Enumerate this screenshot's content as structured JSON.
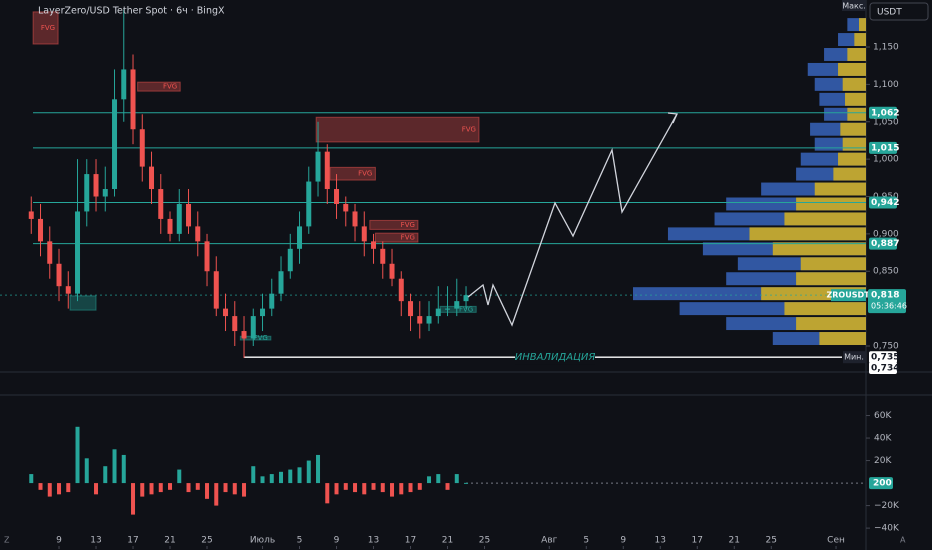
{
  "chart_data": {
    "type": "candlestick",
    "title": "LayerZero/USD Tether Spot · 6ч · BingX",
    "currency": "USDT",
    "symbol": "ZROUSDT",
    "timer": "05:36:46",
    "max_label": "Макс.",
    "min_label": "Мин.",
    "x": [
      6,
      7,
      8,
      9,
      10,
      11,
      12,
      13,
      14,
      15,
      16,
      17,
      18,
      19,
      20,
      21,
      22,
      23,
      24,
      25,
      26,
      27,
      28,
      29,
      30,
      31,
      32,
      33,
      34,
      35,
      36,
      37,
      38,
      39,
      40,
      41,
      42,
      43,
      44,
      45,
      46,
      47,
      48,
      49,
      50,
      51,
      52,
      53
    ],
    "open": [
      0.93,
      0.92,
      0.89,
      0.86,
      0.83,
      0.82,
      0.93,
      0.98,
      0.95,
      0.96,
      1.08,
      1.12,
      1.04,
      0.99,
      0.96,
      0.92,
      0.9,
      0.94,
      0.91,
      0.89,
      0.85,
      0.8,
      0.79,
      0.77,
      0.76,
      0.79,
      0.8,
      0.82,
      0.85,
      0.88,
      0.91,
      0.97,
      1.01,
      0.96,
      0.94,
      0.93,
      0.91,
      0.89,
      0.88,
      0.86,
      0.84,
      0.81,
      0.79,
      0.78,
      0.79,
      0.8,
      0.8,
      0.81
    ],
    "high": [
      0.95,
      0.94,
      0.91,
      0.88,
      0.85,
      1.0,
      1.0,
      1.0,
      0.99,
      1.12,
      1.2,
      1.14,
      1.06,
      1.01,
      0.98,
      0.93,
      0.96,
      0.96,
      0.93,
      0.9,
      0.87,
      0.82,
      0.81,
      0.79,
      0.8,
      0.82,
      0.84,
      0.87,
      0.9,
      0.93,
      0.99,
      1.05,
      1.02,
      0.98,
      0.95,
      0.94,
      0.93,
      0.9,
      0.89,
      0.88,
      0.85,
      0.82,
      0.81,
      0.81,
      0.83,
      0.83,
      0.84,
      0.83
    ],
    "low": [
      0.9,
      0.87,
      0.84,
      0.81,
      0.8,
      0.81,
      0.91,
      0.93,
      0.93,
      0.95,
      1.05,
      1.02,
      0.97,
      0.94,
      0.9,
      0.89,
      0.89,
      0.9,
      0.87,
      0.83,
      0.79,
      0.77,
      0.75,
      0.734,
      0.75,
      0.77,
      0.79,
      0.81,
      0.84,
      0.86,
      0.9,
      0.95,
      0.94,
      0.92,
      0.91,
      0.89,
      0.87,
      0.86,
      0.84,
      0.83,
      0.79,
      0.77,
      0.76,
      0.77,
      0.78,
      0.79,
      0.79,
      0.8
    ],
    "close": [
      0.92,
      0.89,
      0.86,
      0.83,
      0.82,
      0.93,
      0.98,
      0.95,
      0.96,
      1.08,
      1.12,
      1.04,
      0.99,
      0.96,
      0.92,
      0.9,
      0.94,
      0.91,
      0.89,
      0.85,
      0.8,
      0.79,
      0.77,
      0.76,
      0.79,
      0.8,
      0.82,
      0.85,
      0.88,
      0.91,
      0.97,
      1.01,
      0.96,
      0.94,
      0.93,
      0.91,
      0.89,
      0.88,
      0.86,
      0.84,
      0.81,
      0.79,
      0.78,
      0.79,
      0.8,
      0.8,
      0.81,
      0.818
    ],
    "volume": [
      8000,
      -6000,
      -12000,
      -10000,
      -8000,
      50000,
      22000,
      -10000,
      15000,
      30000,
      25000,
      -28000,
      -12000,
      -10000,
      -8000,
      -6000,
      12000,
      -8000,
      -6000,
      -14000,
      -20000,
      -8000,
      -10000,
      -12000,
      15000,
      6000,
      8000,
      10000,
      12000,
      14000,
      20000,
      25000,
      -18000,
      -10000,
      -6000,
      -8000,
      -10000,
      -6000,
      -8000,
      -12000,
      -10000,
      -8000,
      -6000,
      6000,
      8000,
      -6000,
      8000,
      200
    ],
    "up_color": "#26a69a",
    "down_color": "#ef5350",
    "xlim": [
      2.62,
      96.24
    ],
    "xticks": [
      {
        "value": 9,
        "label": "9"
      },
      {
        "value": 13,
        "label": "13"
      },
      {
        "value": 17,
        "label": "17"
      },
      {
        "value": 21,
        "label": "21"
      },
      {
        "value": 25,
        "label": "25"
      },
      {
        "value": 31,
        "label": "Июль"
      },
      {
        "value": 35,
        "label": "5"
      },
      {
        "value": 39,
        "label": "9"
      },
      {
        "value": 43,
        "label": "13"
      },
      {
        "value": 47,
        "label": "17"
      },
      {
        "value": 51,
        "label": "21"
      },
      {
        "value": 55,
        "label": "25"
      },
      {
        "value": 62,
        "label": "Авг"
      },
      {
        "value": 66,
        "label": "5"
      },
      {
        "value": 70,
        "label": "9"
      },
      {
        "value": 74,
        "label": "13"
      },
      {
        "value": 78,
        "label": "17"
      },
      {
        "value": 82,
        "label": "21"
      },
      {
        "value": 86,
        "label": "25"
      },
      {
        "value": 93,
        "label": "Сен"
      }
    ],
    "ylim": [
      0.7152,
      1.2129
    ],
    "yticks": [
      {
        "value": 0.75,
        "label": "0,750"
      },
      {
        "value": 0.85,
        "label": "0,850"
      },
      {
        "value": 0.9,
        "label": "0,900"
      },
      {
        "value": 0.95,
        "label": "0,950"
      },
      {
        "value": 1.0,
        "label": "1,000"
      },
      {
        "value": 1.05,
        "label": "1,050"
      },
      {
        "value": 1.1,
        "label": "1,100"
      },
      {
        "value": 1.15,
        "label": "1,150"
      }
    ],
    "vlim": [
      -55000,
      73800
    ],
    "vticks": [
      {
        "value": 60000,
        "label": "60K"
      },
      {
        "value": 40000,
        "label": "40K"
      },
      {
        "value": 20000,
        "label": "20K"
      },
      {
        "value": -20000,
        "label": "−20K"
      },
      {
        "value": -40000,
        "label": "−40K"
      }
    ],
    "levels": [
      {
        "value": 1.062,
        "label": "1,062"
      },
      {
        "value": 1.015,
        "label": "1,015"
      },
      {
        "value": 0.942,
        "label": "0,942"
      },
      {
        "value": 0.887,
        "label": "0,887"
      }
    ],
    "level_color": "#26a69a",
    "invalidation": {
      "value": 0.735,
      "label": "0,735",
      "text": "ИНВАЛИДАЦИЯ"
    },
    "last_price": {
      "value": 0.818,
      "label": "0,818"
    },
    "min_price": {
      "value": 0.734,
      "label": "0,734"
    },
    "fvg_zones": [
      {
        "start": 6.2,
        "end": 8.9,
        "top": 1.197,
        "bottom": 1.154,
        "color": "#ef5350",
        "label": "FVG"
      },
      {
        "start": 17.5,
        "end": 22.1,
        "top": 1.103,
        "bottom": 1.091,
        "color": "#ef5350",
        "label": "FVG"
      },
      {
        "start": 36.8,
        "end": 54.4,
        "top": 1.056,
        "bottom": 1.023,
        "color": "#ef5350",
        "label": "FVG"
      },
      {
        "start": 38.3,
        "end": 43.2,
        "top": 0.989,
        "bottom": 0.972,
        "color": "#ef5350",
        "label": "FVG"
      },
      {
        "start": 42.6,
        "end": 47.8,
        "top": 0.918,
        "bottom": 0.906,
        "color": "#ef5350",
        "label": "FVG"
      },
      {
        "start": 43.2,
        "end": 47.8,
        "top": 0.901,
        "bottom": 0.889,
        "color": "#ef5350",
        "label": "FVG"
      },
      {
        "start": 10.2,
        "end": 13.0,
        "top": 0.817,
        "bottom": 0.798,
        "color": "#26a69a"
      },
      {
        "start": 28.6,
        "end": 31.9,
        "top": 0.763,
        "bottom": 0.758,
        "color": "#26a69a",
        "label": "FVG"
      },
      {
        "start": 50.2,
        "end": 54.1,
        "top": 0.803,
        "bottom": 0.795,
        "color": "#26a69a",
        "label": "FVG"
      }
    ],
    "volume_profile": {
      "levels": [
        0.76,
        0.78,
        0.8,
        0.82,
        0.84,
        0.86,
        0.88,
        0.9,
        0.92,
        0.94,
        0.96,
        0.98,
        1.0,
        1.02,
        1.04,
        1.06,
        1.08,
        1.1,
        1.12,
        1.14,
        1.16,
        1.18
      ],
      "total": [
        40,
        60,
        80,
        100,
        60,
        55,
        70,
        85,
        65,
        60,
        45,
        30,
        28,
        22,
        24,
        18,
        20,
        22,
        25,
        18,
        12,
        8
      ],
      "up": [
        20,
        30,
        35,
        45,
        30,
        28,
        40,
        50,
        35,
        30,
        22,
        14,
        12,
        10,
        11,
        8,
        9,
        10,
        12,
        8,
        5,
        3
      ],
      "max": 100,
      "total_color": "#3d6fd1",
      "up_color": "#d6b21e"
    }
  }
}
